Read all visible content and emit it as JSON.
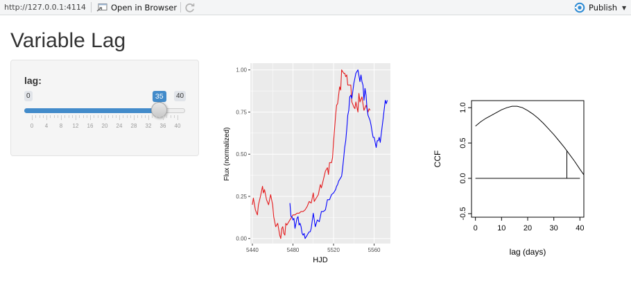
{
  "toolbar": {
    "url": "http://127.0.0.1:4114",
    "open_label": "Open in Browser",
    "publish_label": "Publish"
  },
  "app": {
    "title": "Variable Lag"
  },
  "slider": {
    "label": "lag:",
    "min": 0,
    "max": 40,
    "value": 35,
    "min_label": "0",
    "max_label": "40",
    "value_label": "35",
    "grid_labels": [
      "0",
      "4",
      "8",
      "12",
      "16",
      "20",
      "24",
      "28",
      "32",
      "36",
      "40"
    ]
  },
  "colors": {
    "accent": "#428bca",
    "series_a": "#e41a1c",
    "series_b": "#0000ff",
    "panel_bg": "#ebebeb"
  },
  "chart_data": [
    {
      "type": "line",
      "xlabel": "HJD",
      "ylabel": "Flux (normalized)",
      "xlim": [
        5438,
        5576
      ],
      "ylim": [
        -0.03,
        1.04
      ],
      "x_ticks": [
        "5440",
        "5480",
        "5520",
        "5560"
      ],
      "y_ticks": [
        "0.00",
        "0.25",
        "0.50",
        "0.75",
        "1.00"
      ],
      "grid": true,
      "series": [
        {
          "color": "#e41a1c",
          "x": [
            5440,
            5441,
            5443,
            5445,
            5446,
            5448,
            5450,
            5451,
            5452,
            5454,
            5456,
            5458,
            5460,
            5461,
            5463,
            5465,
            5467,
            5468,
            5469,
            5470,
            5471,
            5472,
            5473,
            5474,
            5476,
            5478,
            5480,
            5481,
            5482,
            5484,
            5486,
            5488,
            5490,
            5492,
            5494,
            5496,
            5498,
            5500,
            5501,
            5503,
            5505,
            5506,
            5507,
            5508,
            5510,
            5512,
            5514,
            5515,
            5516,
            5518,
            5519,
            5520,
            5521,
            5522,
            5523,
            5524,
            5526,
            5527,
            5528,
            5530,
            5531,
            5532,
            5533,
            5534,
            5536,
            5537,
            5538,
            5540,
            5541,
            5542,
            5544,
            5545,
            5546,
            5548,
            5550,
            5552,
            5554,
            5555,
            5556
          ],
          "y": [
            0.2,
            0.24,
            0.17,
            0.14,
            0.2,
            0.25,
            0.31,
            0.27,
            0.29,
            0.23,
            0.2,
            0.26,
            0.2,
            0.13,
            0.07,
            0.09,
            0.02,
            0.0,
            0.06,
            0.07,
            0.03,
            0.02,
            0.09,
            0.08,
            0.1,
            0.12,
            0.14,
            0.14,
            0.14,
            0.15,
            0.15,
            0.16,
            0.16,
            0.17,
            0.19,
            0.22,
            0.21,
            0.27,
            0.22,
            0.24,
            0.26,
            0.29,
            0.32,
            0.3,
            0.35,
            0.4,
            0.42,
            0.38,
            0.45,
            0.45,
            0.48,
            0.57,
            0.65,
            0.73,
            0.79,
            0.8,
            0.9,
            0.88,
            1.0,
            0.98,
            0.98,
            0.96,
            0.97,
            0.91,
            0.91,
            0.91,
            0.81,
            0.78,
            0.77,
            0.81,
            0.75,
            0.86,
            0.81,
            0.84,
            0.76,
            0.79,
            0.75,
            0.77,
            0.76
          ]
        },
        {
          "color": "#0000ff",
          "x": [
            5477,
            5478,
            5479,
            5480,
            5481,
            5482,
            5483,
            5484,
            5485,
            5486,
            5487,
            5488,
            5489,
            5490,
            5491,
            5492,
            5493,
            5494,
            5495,
            5496,
            5497,
            5498,
            5500,
            5502,
            5504,
            5506,
            5508,
            5510,
            5512,
            5514,
            5516,
            5518,
            5520,
            5522,
            5523,
            5524,
            5525,
            5526,
            5527,
            5528,
            5529,
            5530,
            5531,
            5532,
            5533,
            5534,
            5535,
            5536,
            5537,
            5538,
            5540,
            5542,
            5543,
            5544,
            5546,
            5547,
            5548,
            5549,
            5550,
            5551,
            5552,
            5553,
            5554,
            5556,
            5557,
            5558,
            5559,
            5560,
            5561,
            5562,
            5563,
            5564,
            5565,
            5566,
            5567,
            5568,
            5569,
            5570,
            5571,
            5572,
            5573
          ],
          "y": [
            0.21,
            0.13,
            0.13,
            0.11,
            0.12,
            0.06,
            0.09,
            0.12,
            0.13,
            0.08,
            0.09,
            0.07,
            0.03,
            0.02,
            0.03,
            0.0,
            0.01,
            0.02,
            0.03,
            0.04,
            0.04,
            0.06,
            0.15,
            0.07,
            0.11,
            0.1,
            0.16,
            0.16,
            0.17,
            0.23,
            0.23,
            0.26,
            0.27,
            0.29,
            0.31,
            0.32,
            0.34,
            0.35,
            0.36,
            0.37,
            0.42,
            0.48,
            0.54,
            0.58,
            0.65,
            0.73,
            0.76,
            0.84,
            0.85,
            0.83,
            0.92,
            0.98,
            0.99,
            1.0,
            0.93,
            0.97,
            0.93,
            0.91,
            0.82,
            0.89,
            0.85,
            0.77,
            0.73,
            0.7,
            0.67,
            0.63,
            0.6,
            0.6,
            0.57,
            0.54,
            0.58,
            0.58,
            0.6,
            0.57,
            0.62,
            0.67,
            0.72,
            0.77,
            0.82,
            0.8,
            0.82
          ]
        }
      ]
    },
    {
      "type": "line",
      "xlabel": "lag (days)",
      "ylabel": "CCF",
      "xlim": [
        -1.5,
        41.5
      ],
      "ylim": [
        -0.55,
        1.1
      ],
      "x_ticks": [
        "0",
        "10",
        "20",
        "30",
        "40"
      ],
      "y_ticks": [
        "-0.5",
        "0.0",
        "0.5",
        "1.0"
      ],
      "grid": false,
      "series": [
        {
          "x": [
            0,
            2,
            4,
            6,
            8,
            10,
            12,
            14,
            16,
            18,
            20,
            22,
            24,
            26,
            28,
            30,
            32,
            34,
            35,
            36,
            38,
            40,
            41.5
          ],
          "y": [
            0.74,
            0.8,
            0.85,
            0.89,
            0.93,
            0.97,
            1.0,
            1.02,
            1.02,
            1.0,
            0.96,
            0.91,
            0.85,
            0.78,
            0.7,
            0.62,
            0.53,
            0.44,
            0.39,
            0.34,
            0.24,
            0.13,
            0.05
          ]
        }
      ],
      "baseline": 0.0,
      "baseline_range": [
        0,
        40
      ],
      "marker_lag": 35
    }
  ]
}
